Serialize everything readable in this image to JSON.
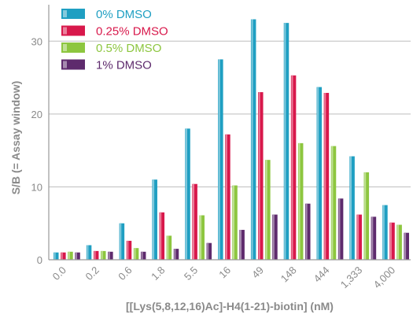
{
  "chart_data": {
    "type": "bar",
    "title": "",
    "xlabel": "[[Lys(5,8,12,16)Ac]-H4(1-21)-biotin] (nM)",
    "ylabel": "S/B (= Assay window)",
    "ylim": [
      0,
      35
    ],
    "yticks": [
      0,
      10,
      20,
      30
    ],
    "grid": "horizontal",
    "legend": "top-left",
    "categories": [
      "0.0",
      "0.2",
      "0.6",
      "1.8",
      "5.5",
      "16",
      "49",
      "148",
      "444",
      "1,333",
      "4,000"
    ],
    "series": [
      {
        "name": "0% DMSO",
        "color": "#1f9fc2",
        "values": [
          1.0,
          2.0,
          5.0,
          11.0,
          18.0,
          27.5,
          33.0,
          32.5,
          23.7,
          14.2,
          7.5
        ]
      },
      {
        "name": "0.25% DMSO",
        "color": "#d8184b",
        "values": [
          1.0,
          1.2,
          2.6,
          6.5,
          10.4,
          17.2,
          23.0,
          25.3,
          22.9,
          6.2,
          5.1
        ]
      },
      {
        "name": "0.5% DMSO",
        "color": "#8dc63f",
        "values": [
          1.1,
          1.2,
          1.6,
          3.3,
          6.1,
          10.2,
          13.7,
          16.0,
          15.6,
          12.0,
          4.8
        ]
      },
      {
        "name": "1% DMSO",
        "color": "#5e2b6d",
        "values": [
          1.0,
          1.1,
          1.1,
          1.5,
          2.3,
          4.1,
          6.2,
          7.7,
          8.4,
          5.9,
          3.7
        ]
      }
    ]
  }
}
